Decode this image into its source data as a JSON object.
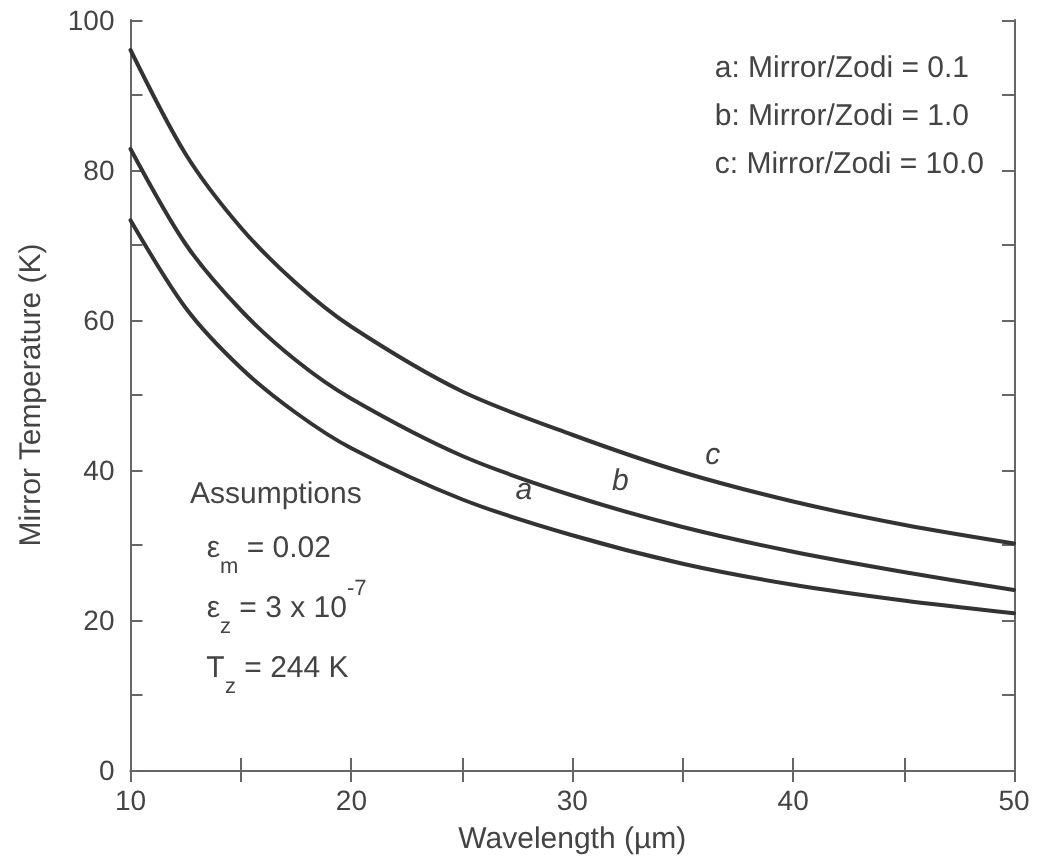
{
  "chart_data": {
    "type": "line",
    "xlabel": "Wavelength (µm)",
    "ylabel": "Mirror Temperature (K)",
    "x": [
      10,
      12.5,
      15,
      17.5,
      20,
      25,
      30,
      35,
      40,
      45,
      50
    ],
    "series": [
      {
        "name": "a",
        "color": "#333333",
        "values": [
          73.3,
          61.6,
          53.6,
          47.6,
          42.9,
          36.1,
          31.3,
          27.5,
          24.7,
          22.6,
          20.9
        ]
      },
      {
        "name": "b",
        "color": "#333333",
        "values": [
          82.8,
          70.1,
          61.3,
          54.6,
          49.5,
          41.9,
          36.6,
          32.4,
          29.1,
          26.4,
          24.0
        ]
      },
      {
        "name": "c",
        "color": "#333333",
        "values": [
          96,
          82.1,
          72.3,
          64.9,
          59.1,
          50.5,
          44.7,
          39.7,
          35.8,
          32.7,
          30.2
        ]
      }
    ],
    "xlim": [
      10,
      50
    ],
    "xticks": [
      10,
      {
        "value": 15,
        "label": null
      },
      20,
      {
        "value": 25,
        "label": null
      },
      30,
      {
        "value": 35,
        "label": null
      },
      40,
      {
        "value": 45,
        "label": null
      },
      50
    ],
    "ylim": [
      0,
      100
    ],
    "yticks": [
      0,
      {
        "value": 10,
        "label": null
      },
      20,
      {
        "value": 30,
        "label": null
      },
      40,
      {
        "value": 50,
        "label": null
      },
      60,
      {
        "value": 70,
        "label": null
      },
      80,
      {
        "value": 90,
        "label": null
      },
      100
    ],
    "grid": false,
    "marker": "none",
    "line_style": "solid",
    "annotations": [
      "a: Mirror/Zodi = 0.1\nb: Mirror/Zodi = 1.0\nc: Mirror/Zodi = 10.0",
      "Assumptions\n  ε$_{m}$ = 0.02\n  ε$_{z}$ = 3 x 10$^{-7}$\n  T$_{z}$ = 244 K"
    ]
  }
}
